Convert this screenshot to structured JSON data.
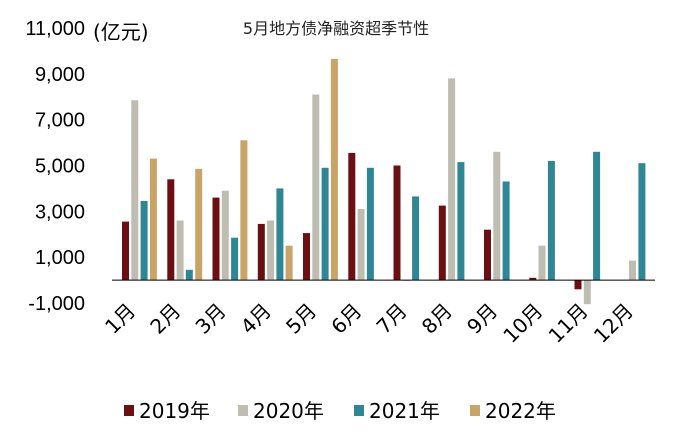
{
  "chart_data": {
    "type": "bar",
    "title": "5月地方债净融资超季节性",
    "unit_label": "(亿元)",
    "categories": [
      "1月",
      "2月",
      "3月",
      "4月",
      "5月",
      "6月",
      "7月",
      "8月",
      "9月",
      "10月",
      "11月",
      "12月"
    ],
    "series": [
      {
        "name": "2019年",
        "color": "#6b0f12",
        "values": [
          2550,
          4400,
          3600,
          2450,
          2050,
          5550,
          5000,
          3250,
          2200,
          100,
          -400,
          null
        ]
      },
      {
        "name": "2020年",
        "color": "#bfbdb2",
        "values": [
          7850,
          2600,
          3900,
          2600,
          8100,
          3100,
          0,
          8800,
          5600,
          1500,
          -1050,
          850
        ]
      },
      {
        "name": "2021年",
        "color": "#2f8796",
        "values": [
          3450,
          450,
          1850,
          4000,
          4900,
          4900,
          3650,
          5150,
          4300,
          5200,
          5600,
          5100
        ]
      },
      {
        "name": "2022年",
        "color": "#c9a467",
        "values": [
          5300,
          4850,
          6100,
          1500,
          9650,
          null,
          null,
          null,
          null,
          null,
          null,
          null
        ]
      }
    ],
    "yticks": [
      "-1,000",
      "1,000",
      "3,000",
      "5,000",
      "7,000",
      "9,000",
      "11,000"
    ],
    "ylim": [
      -1000,
      11000
    ],
    "legend_position": "bottom",
    "grid": false
  }
}
